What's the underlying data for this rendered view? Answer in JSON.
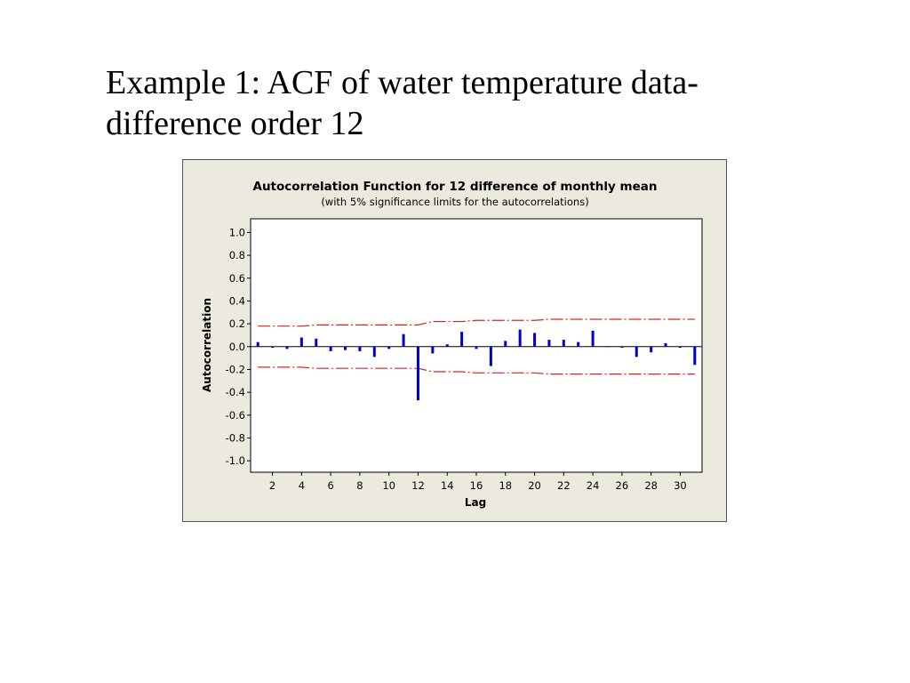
{
  "slide": {
    "title_line1": "Example 1: ACF of water temperature data-",
    "title_line2": "difference order 12"
  },
  "chart_data": {
    "type": "bar",
    "title": "Autocorrelation Function for 12 difference of monthly mean",
    "subtitle": "(with 5% significance limits for the autocorrelations)",
    "xlabel": "Lag",
    "ylabel": "Autocorrelation",
    "xlim": [
      0.5,
      31.5
    ],
    "ylim": [
      -1.1,
      1.12
    ],
    "xticks": [
      2,
      4,
      6,
      8,
      10,
      12,
      14,
      16,
      18,
      20,
      22,
      24,
      26,
      28,
      30
    ],
    "yticks": [
      "1.0",
      "0.8",
      "0.6",
      "0.4",
      "0.2",
      "0.0",
      "-0.2",
      "-0.4",
      "-0.6",
      "-0.8",
      "-1.0"
    ],
    "lags": [
      1,
      2,
      3,
      4,
      5,
      6,
      7,
      8,
      9,
      10,
      11,
      12,
      13,
      14,
      15,
      16,
      17,
      18,
      19,
      20,
      21,
      22,
      23,
      24,
      25,
      26,
      27,
      28,
      29,
      30,
      31
    ],
    "values": [
      0.04,
      -0.01,
      -0.02,
      0.08,
      0.07,
      -0.04,
      -0.03,
      -0.04,
      -0.09,
      -0.02,
      0.11,
      -0.47,
      -0.06,
      0.02,
      0.13,
      -0.02,
      -0.17,
      0.05,
      0.15,
      0.12,
      0.06,
      0.06,
      0.04,
      0.14,
      0.0,
      -0.01,
      -0.09,
      -0.05,
      0.03,
      -0.01,
      -0.16
    ],
    "significance_limits": [
      0.18,
      0.18,
      0.18,
      0.18,
      0.19,
      0.19,
      0.19,
      0.19,
      0.19,
      0.19,
      0.19,
      0.19,
      0.22,
      0.22,
      0.22,
      0.23,
      0.23,
      0.23,
      0.23,
      0.23,
      0.24,
      0.24,
      0.24,
      0.24,
      0.24,
      0.24,
      0.24,
      0.24,
      0.24,
      0.24,
      0.24
    ],
    "colors": {
      "bars": "#0000cc",
      "limits": "#e02020",
      "zero_line": "#000000",
      "panel_background": "#ece9df",
      "plot_background": "#ffffff"
    },
    "grid": false
  }
}
